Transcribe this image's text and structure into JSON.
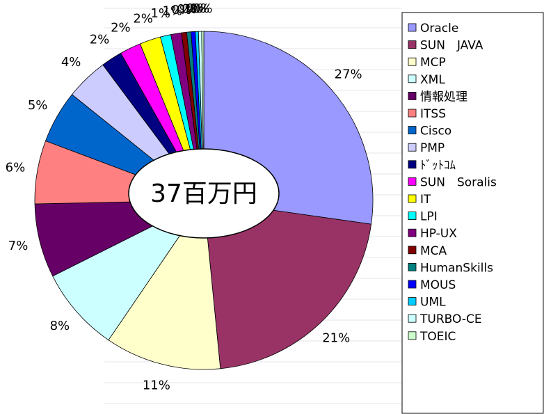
{
  "chart_data": {
    "type": "pie",
    "annotation": "37百万円",
    "categories": [
      "Oracle",
      "SUN　JAVA",
      "MCP",
      "XML",
      "情報処理",
      "ITSS",
      "Cisco",
      "PMP",
      "ﾄﾞｯﾄｺﾑ",
      "SUN　Soralis",
      "IT",
      "LPI",
      "HP-UX",
      "MCA",
      "HumanSkills",
      "MOUS",
      "UML",
      "TURBO-CE",
      "TOEIC"
    ],
    "values": [
      27,
      21,
      11,
      8,
      7,
      6,
      5,
      4,
      2,
      2,
      2,
      1,
      1,
      0.5,
      0.4,
      0.4,
      0.3,
      0.3,
      0.2
    ],
    "value_labels": [
      "27%",
      "21%",
      "11%",
      "8%",
      "7%",
      "6%",
      "5%",
      "4%",
      "2%",
      "2%",
      "2%",
      "1%",
      "1%",
      "0%",
      "0%",
      "0%",
      "0%",
      "0%",
      "0%"
    ],
    "colors": [
      "#9999ff",
      "#993366",
      "#ffffcc",
      "#ccffff",
      "#660066",
      "#ff8080",
      "#0066cc",
      "#ccccff",
      "#000080",
      "#ff00ff",
      "#ffff00",
      "#00ffff",
      "#800080",
      "#800000",
      "#008080",
      "#0000ff",
      "#00ccff",
      "#ccffff",
      "#ccffcc"
    ],
    "legend": "right"
  }
}
